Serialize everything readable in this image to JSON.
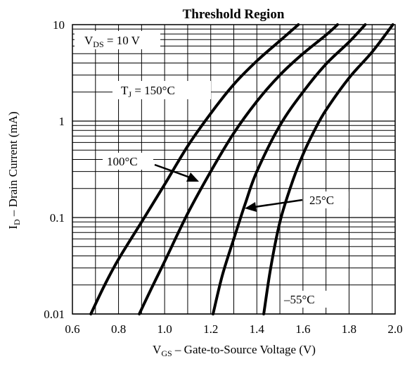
{
  "chart_data": {
    "type": "line",
    "title": "Threshold Region",
    "xlabel": {
      "main": "V",
      "sub": "GS",
      "rest": " – Gate-to-Source Voltage (V)"
    },
    "ylabel": {
      "main": "I",
      "sub": "D",
      "rest": " – Drain Current (mA)"
    },
    "xlim": [
      0.6,
      2.0
    ],
    "ylim": [
      0.01,
      10
    ],
    "yscale": "log",
    "x_ticks": [
      "0.6",
      "0.8",
      "1.0",
      "1.2",
      "1.4",
      "1.6",
      "1.8",
      "2.0"
    ],
    "y_ticks": [
      "0.01",
      "0.1",
      "1",
      "10"
    ],
    "grid": true,
    "annotations": {
      "vds": {
        "main": "V",
        "sub": "DS",
        "rest": " = 10 V"
      },
      "tj": {
        "main": "T",
        "sub": "J",
        "rest": " = 150°C"
      },
      "t100": "100°C",
      "t25": "25°C",
      "tm55": "–55°C"
    },
    "series": [
      {
        "name": "150°C",
        "x": [
          0.68,
          0.74,
          0.8,
          0.9,
          1.0,
          1.1,
          1.2,
          1.3,
          1.4,
          1.5,
          1.58
        ],
        "y": [
          0.01,
          0.02,
          0.037,
          0.09,
          0.22,
          0.55,
          1.2,
          2.4,
          4.2,
          6.8,
          10
        ]
      },
      {
        "name": "100°C",
        "x": [
          0.89,
          0.95,
          1.0,
          1.1,
          1.2,
          1.3,
          1.4,
          1.5,
          1.6,
          1.7,
          1.75
        ],
        "y": [
          0.01,
          0.02,
          0.035,
          0.11,
          0.3,
          0.75,
          1.6,
          3.0,
          5.0,
          7.8,
          10
        ]
      },
      {
        "name": "25°C",
        "x": [
          1.21,
          1.25,
          1.3,
          1.35,
          1.4,
          1.5,
          1.6,
          1.7,
          1.8,
          1.87
        ],
        "y": [
          0.01,
          0.025,
          0.06,
          0.14,
          0.3,
          0.9,
          2.0,
          3.9,
          6.6,
          10
        ]
      },
      {
        "name": "-55°C",
        "x": [
          1.43,
          1.46,
          1.5,
          1.55,
          1.6,
          1.65,
          1.7,
          1.8,
          1.9,
          1.99
        ],
        "y": [
          0.01,
          0.03,
          0.09,
          0.22,
          0.45,
          0.8,
          1.3,
          2.8,
          5.2,
          10
        ]
      }
    ]
  }
}
